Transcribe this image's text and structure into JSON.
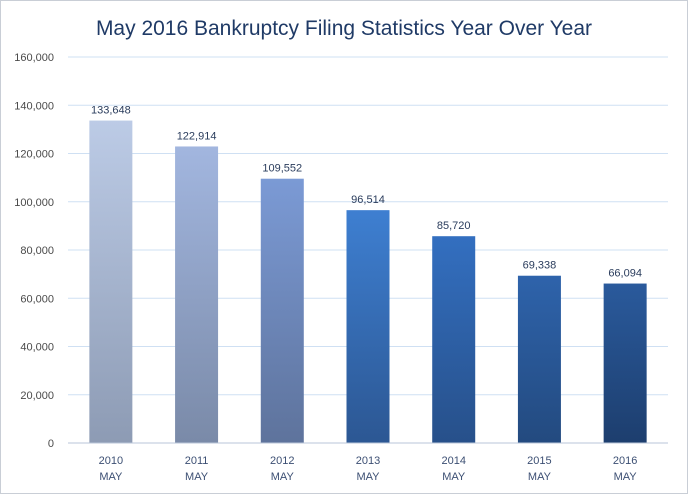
{
  "chart_data": {
    "type": "bar",
    "title": "May 2016 Bankruptcy Filing Statistics Year Over Year",
    "categories": [
      [
        "2010",
        "MAY"
      ],
      [
        "2011",
        "MAY"
      ],
      [
        "2012",
        "MAY"
      ],
      [
        "2013",
        "MAY"
      ],
      [
        "2014",
        "MAY"
      ],
      [
        "2015",
        "MAY"
      ],
      [
        "2016",
        "MAY"
      ]
    ],
    "values": [
      133648,
      122914,
      109552,
      96514,
      85720,
      69338,
      66094
    ],
    "data_labels": [
      "133,648",
      "122,914",
      "109,552",
      "96,514",
      "85,720",
      "69,338",
      "66,094"
    ],
    "ylim": [
      0,
      160000
    ],
    "yticks": [
      0,
      20000,
      40000,
      60000,
      80000,
      100000,
      120000,
      140000,
      160000
    ],
    "ytick_labels": [
      "0",
      "20,000",
      "40,000",
      "60,000",
      "80,000",
      "100,000",
      "120,000",
      "140,000",
      "160,000"
    ],
    "grid": true,
    "legend": "none",
    "bar_colors": [
      {
        "top": "#bccbe6",
        "bottom": "#8d9bb4"
      },
      {
        "top": "#a2b6df",
        "bottom": "#7a8aa8"
      },
      {
        "top": "#7b9ad5",
        "bottom": "#5e739c"
      },
      {
        "top": "#3e7fd1",
        "bottom": "#2c5793"
      },
      {
        "top": "#336fc0",
        "bottom": "#27508a"
      },
      {
        "top": "#2e63ab",
        "bottom": "#234a7f"
      },
      {
        "top": "#2a5a9c",
        "bottom": "#1d3e6e"
      }
    ]
  }
}
